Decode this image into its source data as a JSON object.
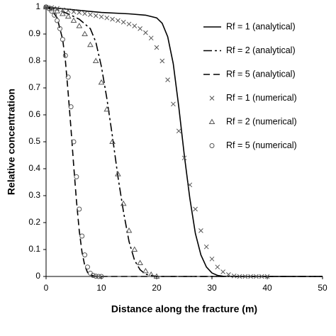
{
  "chart_data": {
    "type": "line",
    "x_label": "Distance along the fracture (m)",
    "y_label": "Relative concentration",
    "xlim": [
      0,
      50
    ],
    "xticks": [
      0,
      10,
      20,
      30,
      40,
      50
    ],
    "ylim": [
      0,
      1
    ],
    "yticks": [
      0,
      0.1,
      0.2,
      0.3,
      0.4,
      0.5,
      0.6,
      0.7,
      0.8,
      0.9,
      1
    ],
    "grid": false,
    "legend": "upper right",
    "series": [
      {
        "name": "Rf = 1 (analytical)",
        "color": "#000000",
        "style": "solid",
        "x": [
          0,
          5,
          10,
          15,
          18,
          20,
          21,
          22,
          23,
          24,
          25,
          26,
          27,
          28,
          29,
          30,
          31,
          32,
          35,
          40,
          50
        ],
        "values": [
          1,
          0.99,
          0.98,
          0.975,
          0.97,
          0.96,
          0.94,
          0.89,
          0.79,
          0.63,
          0.45,
          0.29,
          0.16,
          0.08,
          0.035,
          0.013,
          0.004,
          0.001,
          0,
          0,
          0
        ]
      },
      {
        "name": "Rf = 2 (analytical)",
        "color": "#000000",
        "style": "dash-dot",
        "x": [
          0,
          2,
          4,
          6,
          8,
          9,
          10,
          11,
          12,
          13,
          14,
          15,
          16,
          17,
          18,
          20,
          25,
          50
        ],
        "values": [
          1,
          0.99,
          0.975,
          0.955,
          0.92,
          0.87,
          0.78,
          0.66,
          0.52,
          0.37,
          0.24,
          0.13,
          0.06,
          0.025,
          0.008,
          0,
          0,
          0
        ]
      },
      {
        "name": "Rf = 5 (analytical)",
        "color": "#000000",
        "style": "dash",
        "x": [
          0,
          1,
          2,
          3,
          3.5,
          4,
          4.5,
          5,
          5.5,
          6,
          6.5,
          7,
          7.5,
          8,
          9,
          10,
          50
        ],
        "values": [
          1,
          0.99,
          0.96,
          0.88,
          0.8,
          0.68,
          0.55,
          0.41,
          0.28,
          0.17,
          0.09,
          0.04,
          0.015,
          0.005,
          0,
          0,
          0
        ]
      },
      {
        "name": "Rf = 1 (numerical)",
        "color": "#555555",
        "style": "x",
        "x": [
          0,
          1,
          2,
          3,
          4,
          5,
          6,
          7,
          8,
          9,
          10,
          11,
          12,
          13,
          14,
          15,
          16,
          17,
          18,
          19,
          20,
          21,
          22,
          23,
          24,
          25,
          26,
          27,
          28,
          29,
          30,
          31,
          32,
          33,
          34,
          35,
          36,
          37,
          38,
          39,
          40
        ],
        "values": [
          1,
          0.998,
          0.995,
          0.99,
          0.987,
          0.983,
          0.98,
          0.976,
          0.972,
          0.968,
          0.964,
          0.96,
          0.955,
          0.95,
          0.944,
          0.937,
          0.93,
          0.92,
          0.905,
          0.885,
          0.85,
          0.8,
          0.73,
          0.64,
          0.54,
          0.44,
          0.34,
          0.25,
          0.17,
          0.11,
          0.065,
          0.035,
          0.017,
          0.007,
          0.002,
          0,
          0,
          0,
          0,
          0,
          0
        ]
      },
      {
        "name": "Rf = 2 (numerical)",
        "color": "#555555",
        "style": "triangle",
        "x": [
          0,
          1,
          2,
          3,
          4,
          5,
          6,
          7,
          8,
          9,
          10,
          11,
          12,
          13,
          14,
          15,
          16,
          17,
          18,
          19,
          20
        ],
        "values": [
          1,
          0.993,
          0.985,
          0.975,
          0.965,
          0.95,
          0.93,
          0.9,
          0.86,
          0.8,
          0.72,
          0.62,
          0.5,
          0.38,
          0.27,
          0.17,
          0.1,
          0.05,
          0.02,
          0.007,
          0
        ]
      },
      {
        "name": "Rf = 5 (numerical)",
        "color": "#555555",
        "style": "circle",
        "x": [
          0,
          0.5,
          1,
          1.5,
          2,
          2.5,
          3,
          3.5,
          4,
          4.5,
          5,
          5.5,
          6,
          6.5,
          7,
          7.5,
          8,
          8.5,
          9,
          9.5,
          10
        ],
        "values": [
          1,
          0.995,
          0.985,
          0.97,
          0.95,
          0.92,
          0.88,
          0.82,
          0.74,
          0.63,
          0.5,
          0.37,
          0.25,
          0.15,
          0.08,
          0.035,
          0.012,
          0.004,
          0.001,
          0,
          0
        ]
      }
    ]
  }
}
